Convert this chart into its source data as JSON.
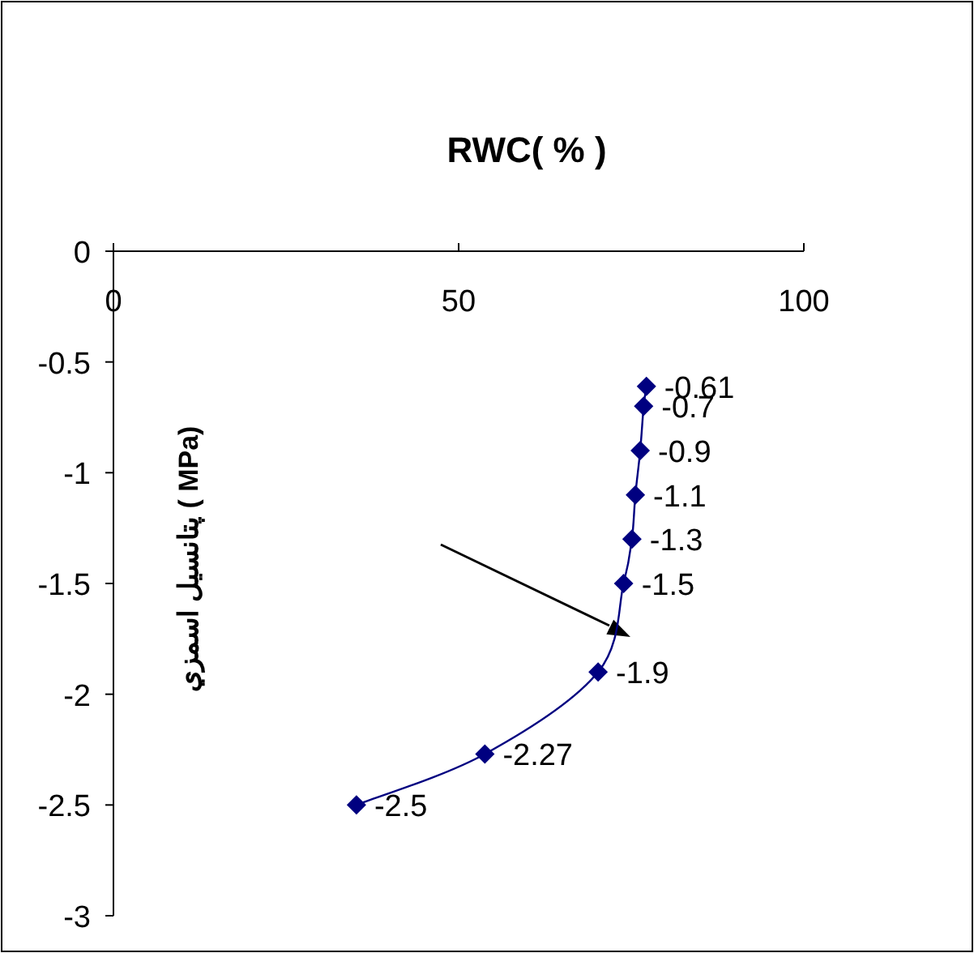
{
  "chart_data": {
    "type": "line",
    "xlabel": "RWC( % )",
    "ylabel": "پتانسیل اسمزي ( MPa)",
    "x": [
      77.2,
      76.8,
      76.3,
      75.6,
      75.1,
      73.9,
      70.2,
      53.8,
      35.2
    ],
    "series": [
      {
        "color": "#000080",
        "values": [
          -0.61,
          -0.7,
          -0.9,
          -1.1,
          -1.3,
          -1.5,
          -1.9,
          -2.27,
          -2.5
        ]
      }
    ],
    "xlim": [
      0,
      100
    ],
    "xticks": [
      0,
      50,
      100
    ],
    "ylim": [
      -3,
      0
    ],
    "yticks": [
      0,
      -0.5,
      -1,
      -1.5,
      -2,
      -2.5,
      -3
    ],
    "marker": "diamond",
    "line_style": "solid",
    "data_labels": true
  }
}
